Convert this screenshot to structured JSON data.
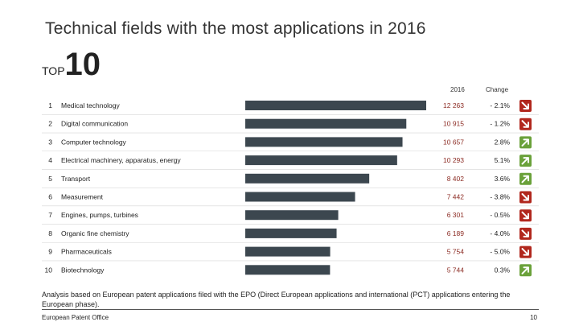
{
  "page": {
    "title": "Technical fields with the most applications in 2016",
    "top_label_small": "TOP",
    "top_label_big": "10",
    "footnote": "Analysis based on European patent applications filed with the EPO (Direct European applications and international (PCT) applications entering the European phase).",
    "footer_left": "European Patent Office",
    "page_number": "10"
  },
  "colors": {
    "bar": "#3c474f",
    "value_text": "#8b2a22",
    "down_arrow_bg": "#b1271d",
    "up_arrow_bg": "#6aa13a",
    "row_rule": "#d6d6d6"
  },
  "chart_data": {
    "type": "bar",
    "orientation": "horizontal",
    "title": "Technical fields with the most applications in 2016",
    "column_headers": {
      "value": "2016",
      "change": "Change"
    },
    "xlim": [
      0,
      12263
    ],
    "categories": [
      "Medical technology",
      "Digital communication",
      "Computer technology",
      "Electrical machinery, apparatus, energy",
      "Transport",
      "Measurement",
      "Engines, pumps, turbines",
      "Organic fine chemistry",
      "Pharmaceuticals",
      "Biotechnology"
    ],
    "ranks": [
      "1",
      "2",
      "3",
      "4",
      "5",
      "6",
      "7",
      "8",
      "9",
      "10"
    ],
    "values": [
      12263,
      10915,
      10657,
      10293,
      8402,
      7442,
      6301,
      6189,
      5754,
      5744
    ],
    "value_labels": [
      "12 263",
      "10 915",
      "10 657",
      "10 293",
      "8 402",
      "7 442",
      "6 301",
      "6 189",
      "5 754",
      "5 744"
    ],
    "change_labels": [
      "- 2.1%",
      "- 1.2%",
      "2.8%",
      "5.1%",
      "3.6%",
      "- 3.8%",
      "- 0.5%",
      "- 4.0%",
      "- 5.0%",
      "0.3%"
    ],
    "change_direction": [
      "down",
      "down",
      "up",
      "up",
      "up",
      "down",
      "down",
      "down",
      "down",
      "up"
    ]
  }
}
